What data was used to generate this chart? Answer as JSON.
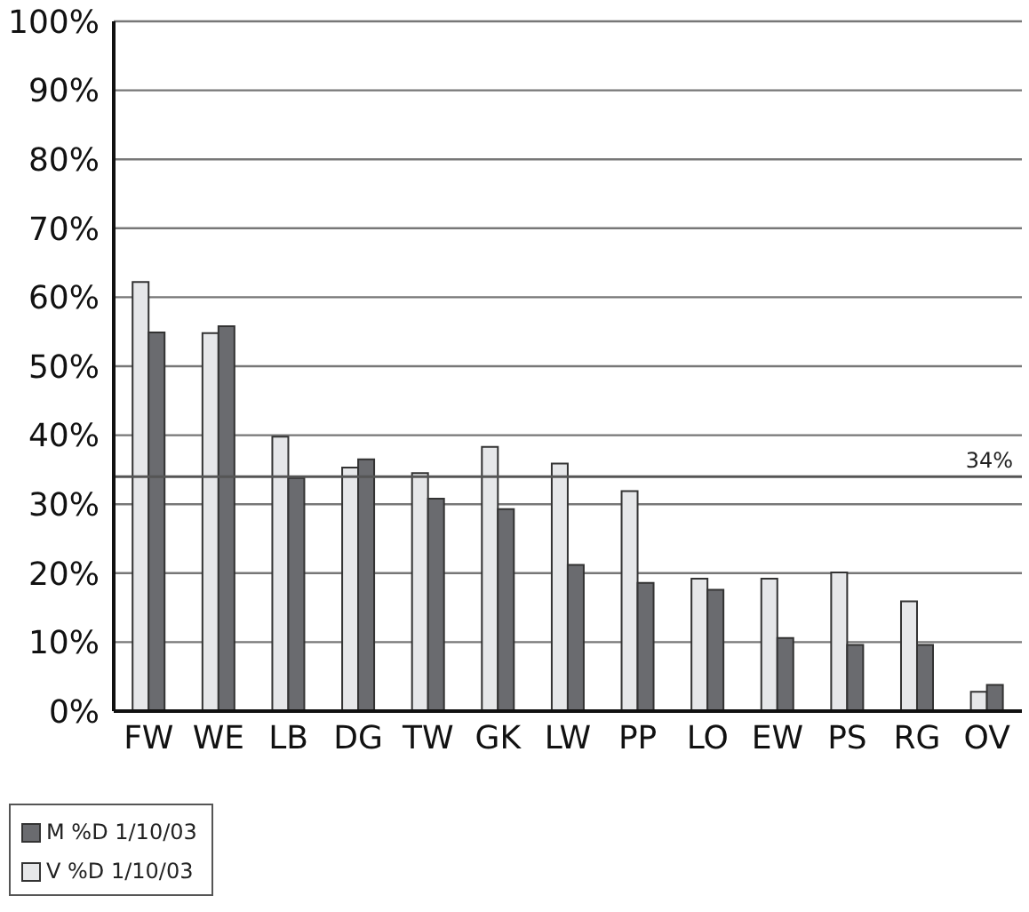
{
  "chart_data": {
    "type": "bar",
    "categories": [
      "FW",
      "WE",
      "LB",
      "DG",
      "TW",
      "GK",
      "LW",
      "PP",
      "LO",
      "EW",
      "PS",
      "RG",
      "OV"
    ],
    "series": [
      {
        "name": "V %D 1/10/03",
        "color": "#e6e7e9",
        "values": [
          62.2,
          54.8,
          39.8,
          35.3,
          34.5,
          38.3,
          35.9,
          31.9,
          19.2,
          19.2,
          20.1,
          15.9,
          2.8
        ]
      },
      {
        "name": "M %D 1/10/03",
        "color": "#6a6b6f",
        "values": [
          54.9,
          55.8,
          33.8,
          36.5,
          30.8,
          29.3,
          21.2,
          18.6,
          17.6,
          10.6,
          9.6,
          9.6,
          3.8
        ]
      }
    ],
    "ylim": [
      0,
      100
    ],
    "yticks": [
      {
        "value": 0,
        "label": "0%"
      },
      {
        "value": 10,
        "label": "10%"
      },
      {
        "value": 20,
        "label": "20%"
      },
      {
        "value": 30,
        "label": "30%"
      },
      {
        "value": 40,
        "label": "40%"
      },
      {
        "value": 50,
        "label": "50%"
      },
      {
        "value": 60,
        "label": "60%"
      },
      {
        "value": 70,
        "label": "70%"
      },
      {
        "value": 80,
        "label": "80%"
      },
      {
        "value": 90,
        "label": "90%"
      },
      {
        "value": 100,
        "label": "100%"
      }
    ],
    "ref_lines": [
      {
        "axis": "y",
        "value": 34,
        "label": "34%"
      }
    ],
    "grid": "y",
    "legend": "bottom left"
  }
}
